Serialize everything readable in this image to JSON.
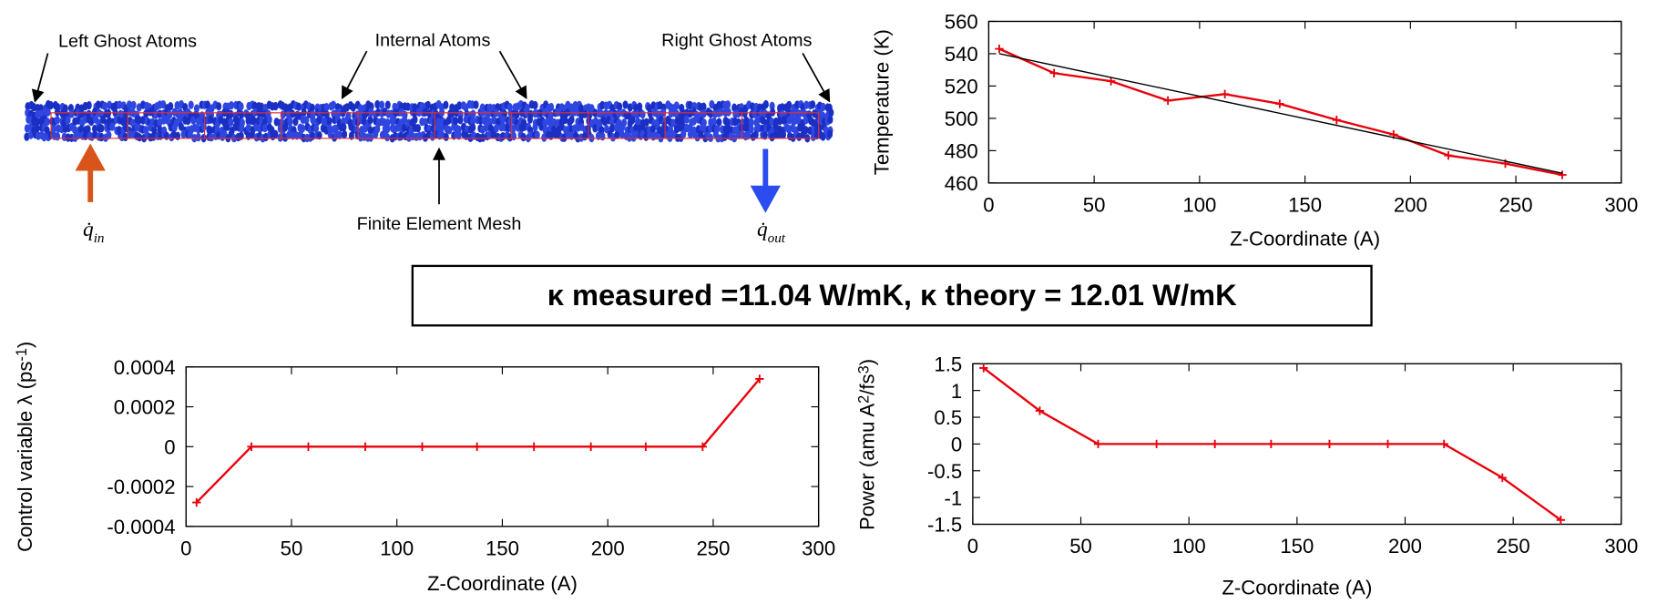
{
  "diagram": {
    "left_ghost": "Left Ghost Atoms",
    "internal": "Internal Atoms",
    "right_ghost": "Right Ghost Atoms",
    "mesh": "Finite Element Mesh",
    "heat_in": {
      "symbol": "q̇",
      "sub": "in"
    },
    "heat_out": {
      "symbol": "q̇",
      "sub": "out"
    }
  },
  "banner": "κ measured =11.04 W/mK, κ theory = 12.01 W/mK",
  "chart_data": [
    {
      "type": "line",
      "x_label": "Z-Coordinate (A)",
      "y_label": {
        "parts": [
          "Temperature (K)"
        ]
      },
      "x": [
        5,
        31,
        58,
        85,
        112,
        138,
        165,
        192,
        218,
        245,
        272
      ],
      "series": [
        {
          "color": "#e8000b",
          "markers": true,
          "values": [
            543,
            528,
            523,
            511,
            515,
            509,
            499,
            490,
            477,
            472,
            465
          ]
        },
        {
          "color": "#000000",
          "markers": false,
          "x": [
            5,
            272
          ],
          "values": [
            540,
            466
          ]
        }
      ],
      "xlim": [
        0,
        300
      ],
      "xticks": [
        0,
        50,
        100,
        150,
        200,
        250,
        300
      ],
      "ylim": [
        460,
        560
      ],
      "yticks": [
        460,
        480,
        500,
        520,
        540,
        560
      ]
    },
    {
      "type": "line",
      "x_label": "Z-Coordinate (A)",
      "y_label": {
        "parts": [
          "Control variable λ (ps",
          "-1",
          ")"
        ]
      },
      "x": [
        5,
        31,
        58,
        85,
        112,
        138,
        165,
        192,
        218,
        245,
        272
      ],
      "series": [
        {
          "color": "#e8000b",
          "markers": true,
          "values": [
            -0.00028,
            0,
            0,
            0,
            0,
            0,
            0,
            0,
            0,
            0,
            0.00034
          ]
        }
      ],
      "xlim": [
        0,
        300
      ],
      "xticks": [
        0,
        50,
        100,
        150,
        200,
        250,
        300
      ],
      "ylim": [
        -0.0004,
        0.0004
      ],
      "yticks": [
        -0.0004,
        -0.0002,
        0,
        0.0002,
        0.0004
      ]
    },
    {
      "type": "line",
      "x_label": "Z-Coordinate (A)",
      "y_label": {
        "parts": [
          "Power (amu A",
          "2",
          "/fs",
          "3",
          ")"
        ]
      },
      "x": [
        5,
        31,
        58,
        85,
        112,
        138,
        165,
        192,
        218,
        245,
        272
      ],
      "series": [
        {
          "color": "#e8000b",
          "markers": true,
          "values": [
            1.42,
            0.62,
            0,
            0,
            0,
            0,
            0,
            0,
            0,
            -0.63,
            -1.42
          ]
        }
      ],
      "xlim": [
        0,
        300
      ],
      "xticks": [
        0,
        50,
        100,
        150,
        200,
        250,
        300
      ],
      "ylim": [
        -1.5,
        1.5
      ],
      "yticks": [
        -1.5,
        -1,
        -0.5,
        0,
        0.5,
        1,
        1.5
      ]
    }
  ]
}
